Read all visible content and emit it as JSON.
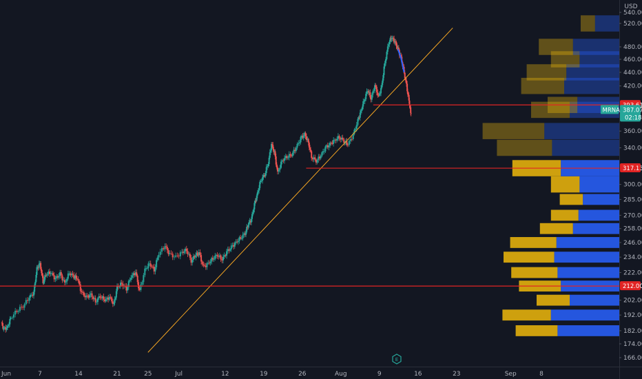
{
  "chart_data": {
    "type": "candlestick",
    "symbol": "MRNA",
    "currency": "USD",
    "price_scale": "log",
    "ylim": [
      163,
      545
    ],
    "y_ticks": [
      166.0,
      174.0,
      182.0,
      192.0,
      202.0,
      212.0,
      222.0,
      234.0,
      246.0,
      258.0,
      270.0,
      285.0,
      300.0,
      317.13,
      340.0,
      360.0,
      387.07,
      393.61,
      420.0,
      440.0,
      460.0,
      480.0,
      520.0,
      540.0
    ],
    "x_ticks": [
      {
        "label": "Jun",
        "t": 0
      },
      {
        "label": "7",
        "t": 5
      },
      {
        "label": "14",
        "t": 10
      },
      {
        "label": "21",
        "t": 15
      },
      {
        "label": "25",
        "t": 19
      },
      {
        "label": "Jul",
        "t": 23
      },
      {
        "label": "12",
        "t": 29
      },
      {
        "label": "19",
        "t": 34
      },
      {
        "label": "26",
        "t": 39
      },
      {
        "label": "Aug",
        "t": 44
      },
      {
        "label": "9",
        "t": 49
      },
      {
        "label": "16",
        "t": 54
      },
      {
        "label": "23",
        "t": 59
      },
      {
        "label": "Sep",
        "t": 66
      },
      {
        "label": "8",
        "t": 70
      }
    ],
    "price_path": [
      [
        0,
        187
      ],
      [
        0.3,
        183
      ],
      [
        0.8,
        184
      ],
      [
        1.2,
        190
      ],
      [
        2,
        195
      ],
      [
        2.8,
        198
      ],
      [
        3.6,
        204
      ],
      [
        4.2,
        207
      ],
      [
        4.6,
        225
      ],
      [
        5,
        229
      ],
      [
        5.4,
        215
      ],
      [
        5.8,
        221
      ],
      [
        6.4,
        222
      ],
      [
        7,
        217
      ],
      [
        7.6,
        221
      ],
      [
        8.2,
        214
      ],
      [
        8.8,
        222
      ],
      [
        9.4,
        219
      ],
      [
        9.8,
        218
      ],
      [
        10.4,
        207
      ],
      [
        11,
        204
      ],
      [
        11.6,
        206
      ],
      [
        12.2,
        201
      ],
      [
        12.8,
        205
      ],
      [
        13.4,
        202
      ],
      [
        14,
        204
      ],
      [
        14.6,
        199
      ],
      [
        15,
        211
      ],
      [
        15.6,
        214
      ],
      [
        16.2,
        210
      ],
      [
        16.8,
        219
      ],
      [
        17.4,
        222
      ],
      [
        17.9,
        208
      ],
      [
        18.6,
        224
      ],
      [
        19.2,
        229
      ],
      [
        19.8,
        224
      ],
      [
        20.4,
        237
      ],
      [
        21.2,
        243
      ],
      [
        21.8,
        236
      ],
      [
        22.6,
        234
      ],
      [
        23.4,
        238
      ],
      [
        24,
        240
      ],
      [
        24.6,
        231
      ],
      [
        25.2,
        236
      ],
      [
        25.6,
        237
      ],
      [
        26.2,
        226
      ],
      [
        26.8,
        229
      ],
      [
        27.4,
        233
      ],
      [
        28,
        236
      ],
      [
        28.6,
        232
      ],
      [
        29.2,
        238
      ],
      [
        29.8,
        242
      ],
      [
        30.4,
        246
      ],
      [
        31,
        250
      ],
      [
        31.6,
        254
      ],
      [
        32,
        262
      ],
      [
        32.4,
        266
      ],
      [
        32.8,
        280
      ],
      [
        33.2,
        291
      ],
      [
        33.6,
        304
      ],
      [
        34.1,
        310
      ],
      [
        34.6,
        323
      ],
      [
        35.0,
        344
      ],
      [
        35.4,
        334
      ],
      [
        35.8,
        312
      ],
      [
        36.4,
        326
      ],
      [
        37,
        330
      ],
      [
        37.6,
        332
      ],
      [
        38.2,
        340
      ],
      [
        38.8,
        351
      ],
      [
        39.3,
        356
      ],
      [
        39.8,
        346
      ],
      [
        40.2,
        330
      ],
      [
        40.8,
        325
      ],
      [
        41.4,
        331
      ],
      [
        42,
        340
      ],
      [
        42.6,
        344
      ],
      [
        43.2,
        349
      ],
      [
        43.8,
        353
      ],
      [
        44.4,
        348
      ],
      [
        44.9,
        344
      ],
      [
        45.6,
        355
      ],
      [
        46.2,
        373
      ],
      [
        46.6,
        385
      ],
      [
        47,
        400
      ],
      [
        47.5,
        415
      ],
      [
        47.9,
        402
      ],
      [
        48.4,
        420
      ],
      [
        48.9,
        404
      ],
      [
        49.3,
        420
      ],
      [
        49.7,
        455
      ],
      [
        50.2,
        487
      ],
      [
        50.6,
        496
      ],
      [
        51,
        488
      ],
      [
        51.4,
        476
      ],
      [
        51.8,
        462
      ],
      [
        52.2,
        440
      ],
      [
        52.6,
        415
      ],
      [
        52.9,
        395
      ],
      [
        53.1,
        382
      ]
    ],
    "trendline": {
      "start": {
        "t": 19,
        "price": 169
      },
      "end": {
        "t": 58.5,
        "price": 512
      },
      "color": "#f5a623"
    },
    "horizontal_lines": [
      {
        "price": 212.0,
        "t_start": -1,
        "label": "212.00",
        "color": "#e12424"
      },
      {
        "price": 317.13,
        "t_start": 39.5,
        "label": "317.13",
        "color": "#e12424"
      },
      {
        "price": 393.61,
        "t_start": 48.2,
        "label": "393.61",
        "color": "#e12424"
      }
    ],
    "last_price": {
      "symbol": "MRNA",
      "price": "387.07",
      "countdown": "02:18",
      "color": "#26a69a"
    },
    "volume_profile": [
      {
        "price": 182,
        "up": 56,
        "down": 38
      },
      {
        "price": 192,
        "up": 62,
        "down": 44
      },
      {
        "price": 202,
        "up": 45,
        "down": 30
      },
      {
        "price": 212,
        "up": 53,
        "down": 38
      },
      {
        "price": 222,
        "up": 56,
        "down": 42
      },
      {
        "price": 234,
        "up": 59,
        "down": 46
      },
      {
        "price": 246,
        "up": 57,
        "down": 42
      },
      {
        "price": 258,
        "up": 42,
        "down": 30
      },
      {
        "price": 270,
        "up": 37,
        "down": 25
      },
      {
        "price": 285,
        "up": 33,
        "down": 21
      },
      {
        "price": 300,
        "up": 36,
        "down": 26
      },
      {
        "price": 317.13,
        "up": 53,
        "down": 44
      },
      {
        "price": 340,
        "up": 61,
        "down": 50
      },
      {
        "price": 360,
        "up": 68,
        "down": 56
      },
      {
        "price": 387.07,
        "up": 45,
        "down": 35
      },
      {
        "price": 393.61,
        "up": 38,
        "down": 27
      },
      {
        "price": 420,
        "up": 50,
        "down": 39
      },
      {
        "price": 440,
        "up": 48,
        "down": 36
      },
      {
        "price": 460,
        "up": 36,
        "down": 26
      },
      {
        "price": 480,
        "up": 42,
        "down": 31
      },
      {
        "price": 520,
        "up": 22,
        "down": 13
      }
    ],
    "colors": {
      "background": "#131722",
      "up": "#26a69a",
      "down": "#ef5350",
      "vp_up": "#2962ff",
      "vp_down": "#f0b90b"
    }
  }
}
